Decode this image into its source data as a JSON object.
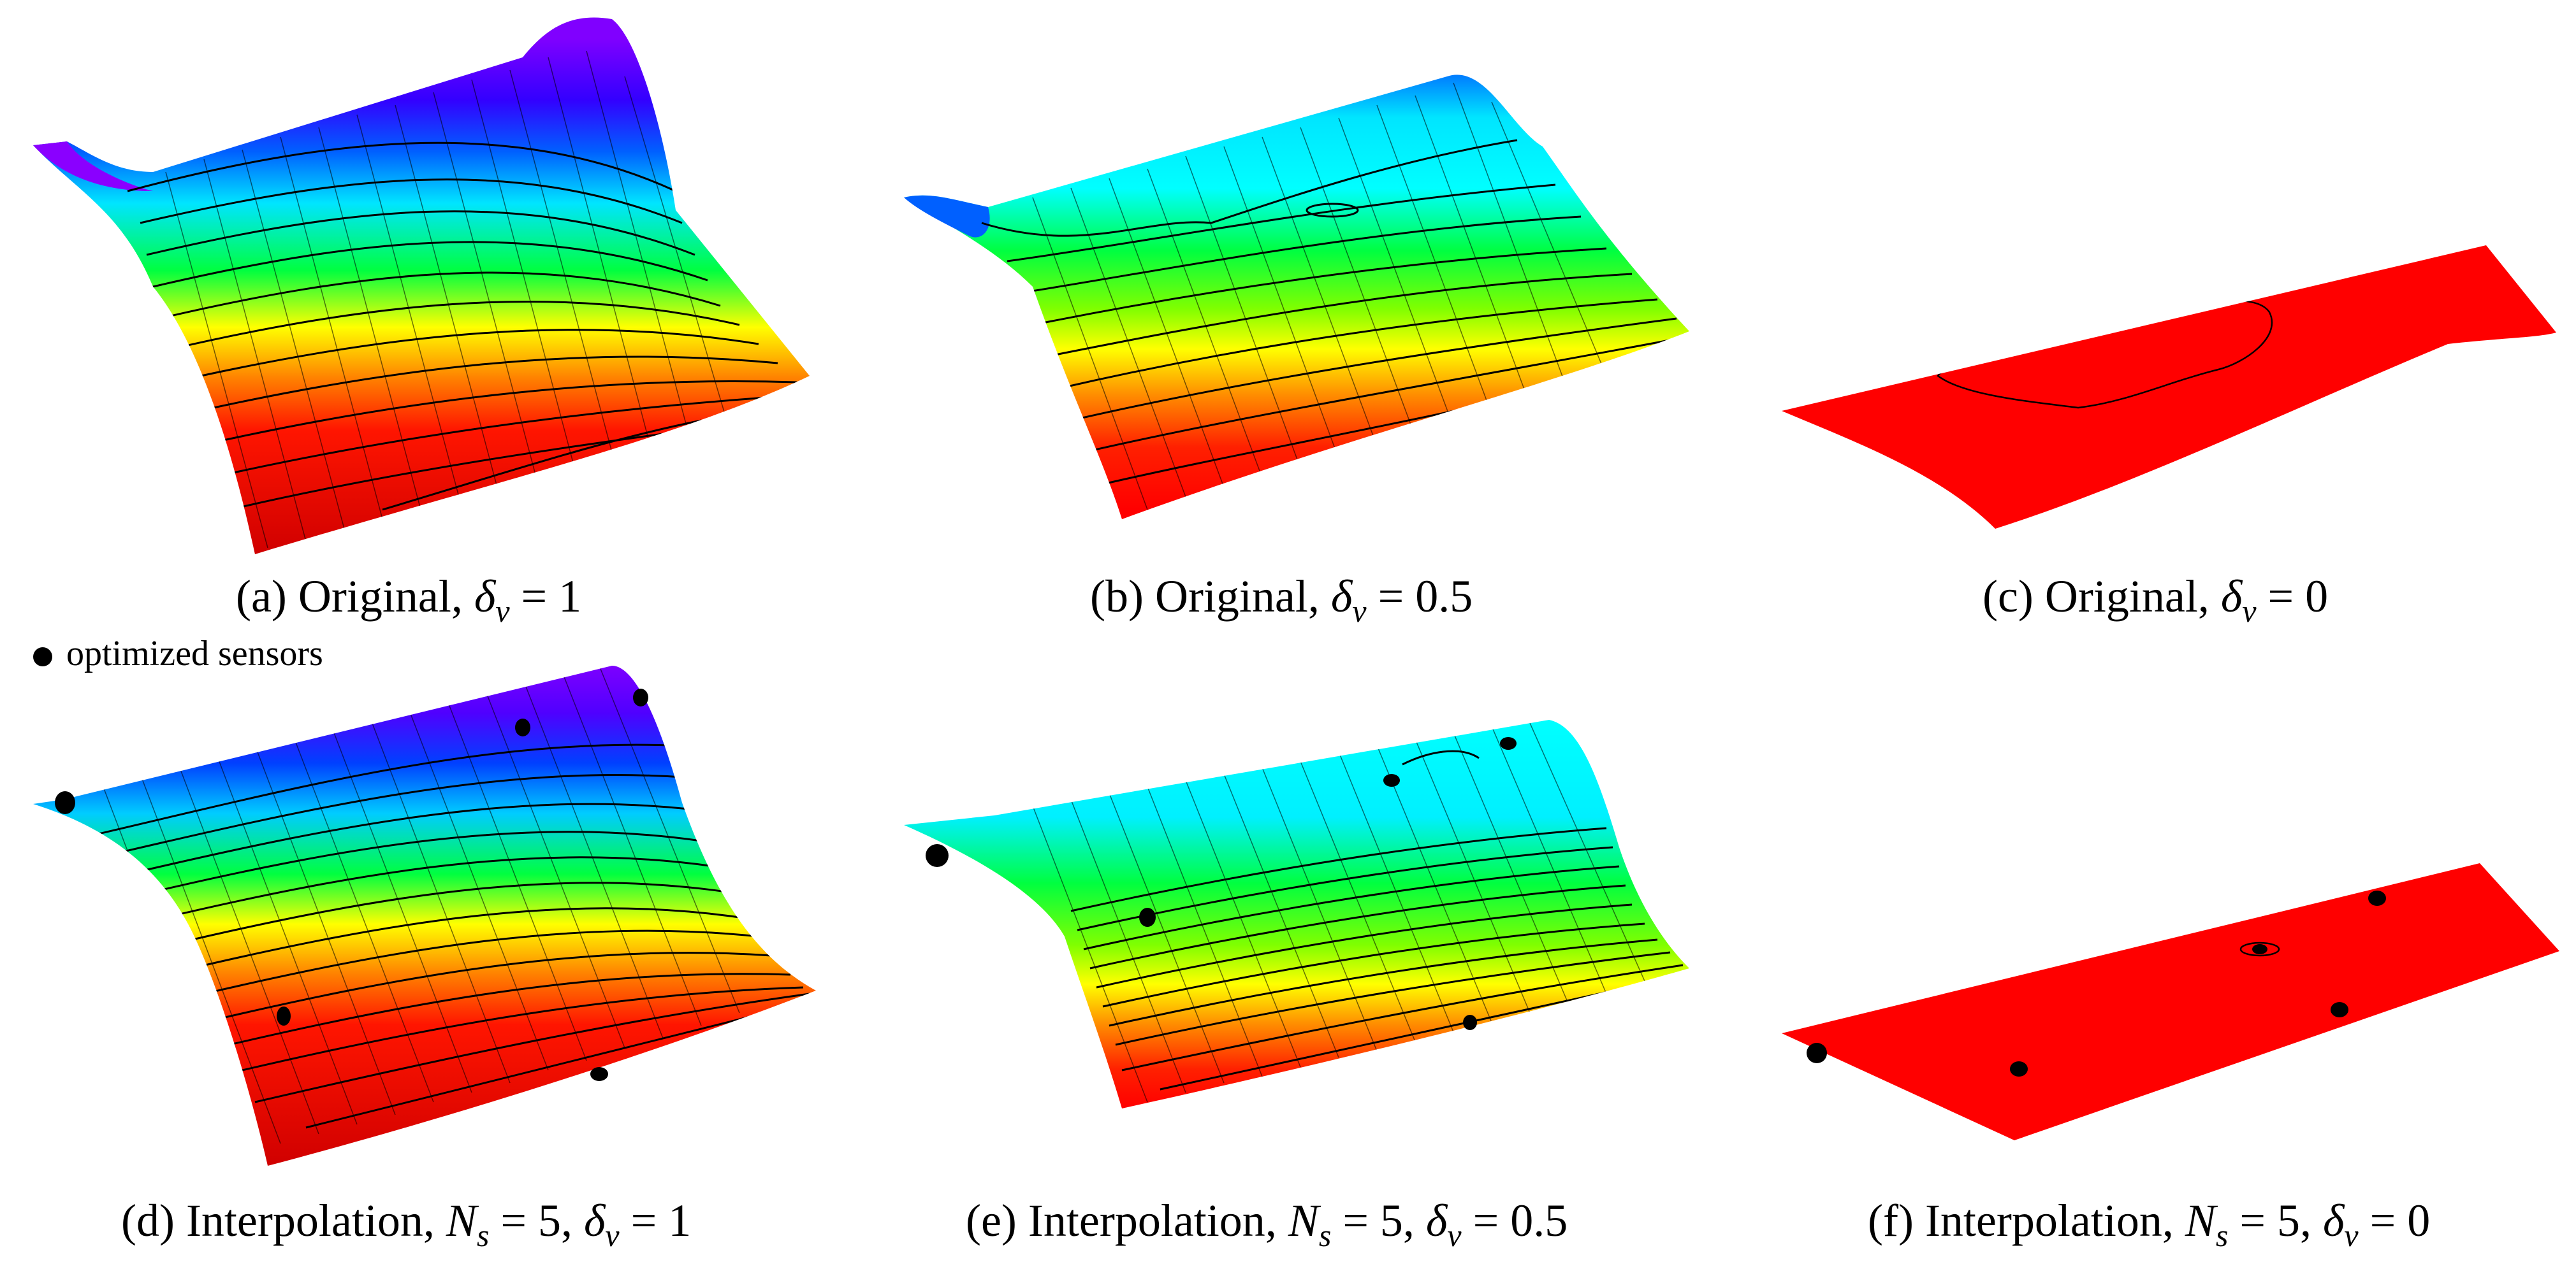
{
  "panels": [
    {
      "id": "a",
      "label": "(a)",
      "method": "Original",
      "param_ns": null,
      "delta_v": "1",
      "sensors": 0
    },
    {
      "id": "b",
      "label": "(b)",
      "method": "Original",
      "param_ns": null,
      "delta_v": "0.5",
      "sensors": 0
    },
    {
      "id": "c",
      "label": "(c)",
      "method": "Original",
      "param_ns": null,
      "delta_v": "0",
      "sensors": 0
    },
    {
      "id": "d",
      "label": "(d)",
      "method": "Interpolation",
      "param_ns": "5",
      "delta_v": "1",
      "sensors": 5
    },
    {
      "id": "e",
      "label": "(e)",
      "method": "Interpolation",
      "param_ns": "5",
      "delta_v": "0.5",
      "sensors": 5
    },
    {
      "id": "f",
      "label": "(f)",
      "method": "Interpolation",
      "param_ns": "5",
      "delta_v": "0",
      "sensors": 5
    }
  ],
  "symbols": {
    "delta": "δ",
    "delta_sub": "v",
    "n": "N",
    "n_sub": "s",
    "equals": "=",
    "comma": ","
  },
  "legend": {
    "label": "optimized sensors"
  },
  "colormap": [
    "#7a00ff",
    "#0000ff",
    "#00ffff",
    "#00ff00",
    "#ffff00",
    "#ff8000",
    "#ff0000"
  ]
}
